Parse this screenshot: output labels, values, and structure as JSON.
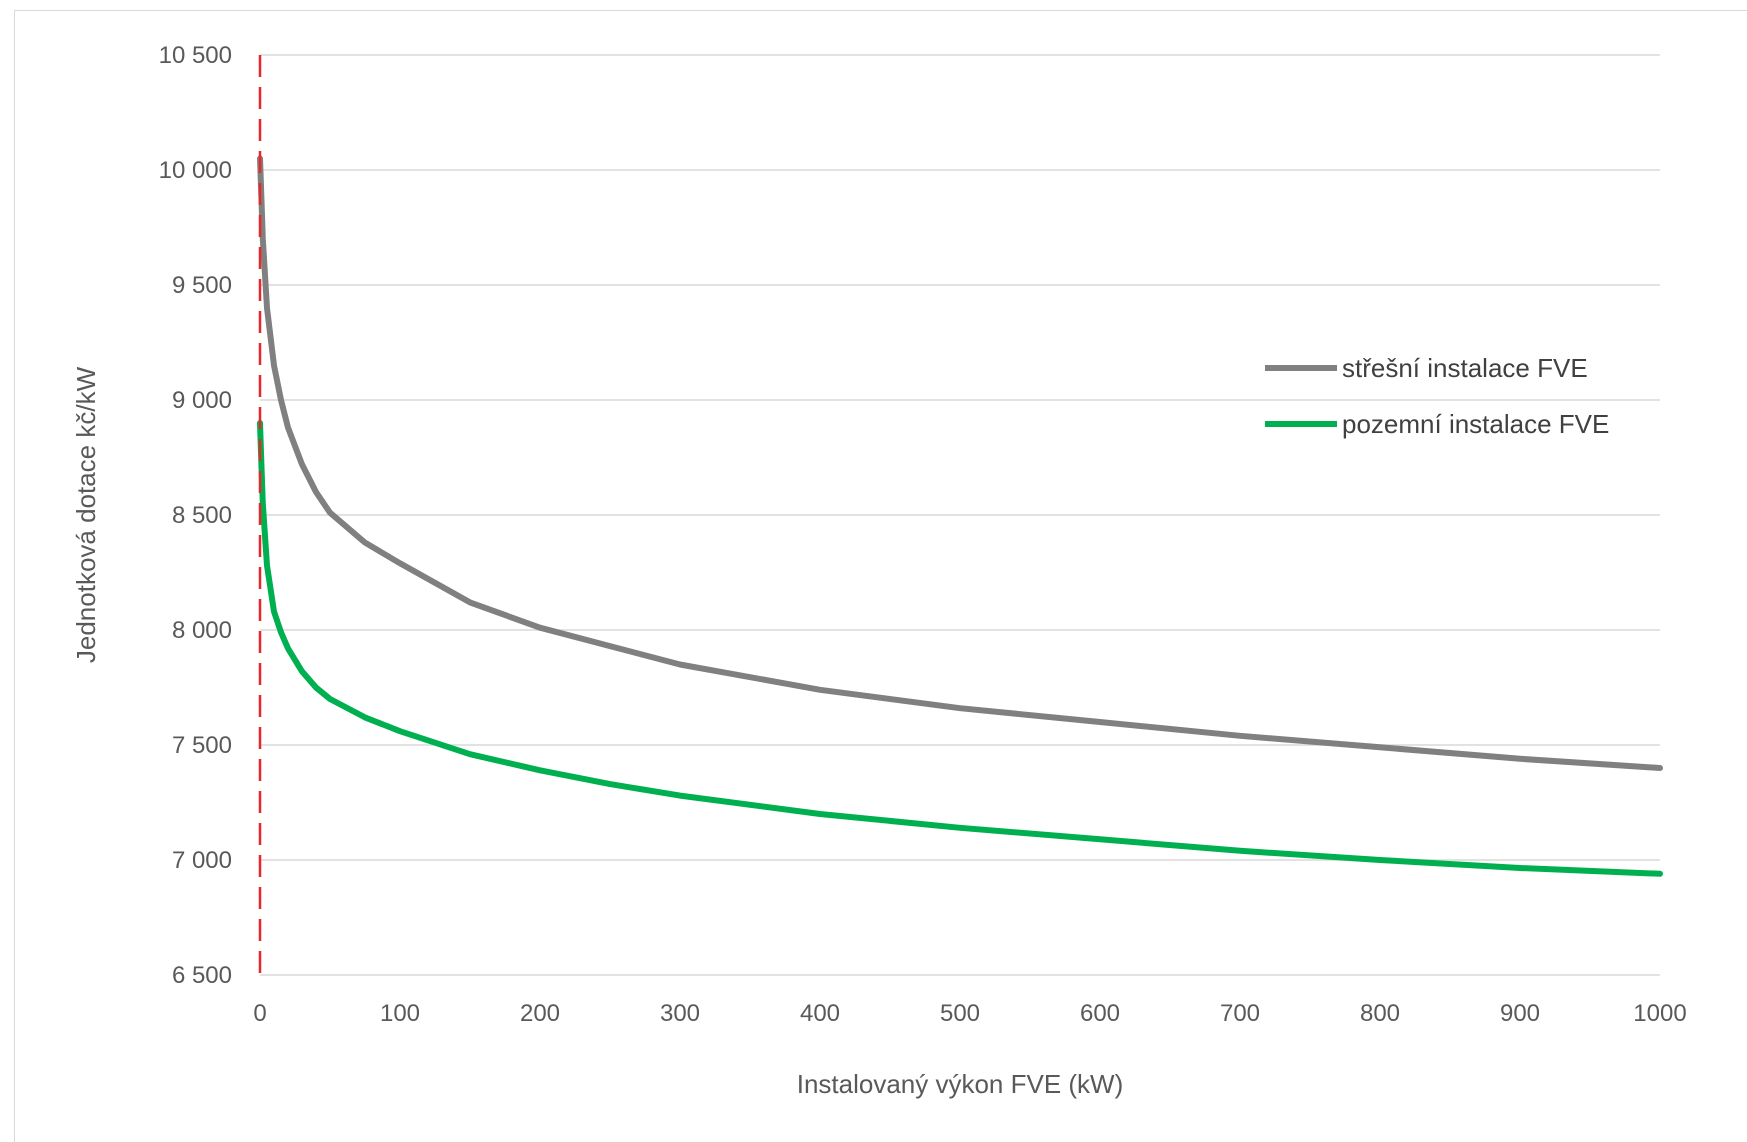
{
  "chart_data": {
    "type": "line",
    "xlabel": "Instalovaný výkon FVE (kW)",
    "ylabel": "Jednotková dotace kč/kW",
    "xlim": [
      0,
      1000
    ],
    "ylim": [
      6500,
      10500
    ],
    "x_ticks": [
      "0",
      "100",
      "200",
      "300",
      "400",
      "500",
      "600",
      "700",
      "800",
      "900",
      "1000"
    ],
    "y_ticks": [
      "6 500",
      "7 000",
      "7 500",
      "8 000",
      "8 500",
      "9 000",
      "9 500",
      "10 000",
      "10 500"
    ],
    "grid": "horizontal",
    "legend_position": "right",
    "reference_line": {
      "x": 0,
      "style": "dashed",
      "color": "#e8272a"
    },
    "series": [
      {
        "name": "střešní instalace FVE",
        "color": "#808080",
        "x": [
          0,
          1,
          2,
          5,
          10,
          15,
          20,
          30,
          40,
          50,
          75,
          100,
          150,
          200,
          250,
          300,
          400,
          500,
          600,
          700,
          800,
          900,
          1000
        ],
        "y": [
          10050,
          9880,
          9700,
          9400,
          9150,
          9000,
          8880,
          8720,
          8600,
          8510,
          8380,
          8290,
          8120,
          8010,
          7930,
          7850,
          7740,
          7660,
          7600,
          7540,
          7490,
          7440,
          7400
        ]
      },
      {
        "name": "pozemní instalace FVE",
        "color": "#00b050",
        "x": [
          0,
          1,
          2,
          5,
          10,
          15,
          20,
          30,
          40,
          50,
          75,
          100,
          150,
          200,
          250,
          300,
          400,
          500,
          600,
          700,
          800,
          900,
          1000
        ],
        "y": [
          8900,
          8720,
          8550,
          8280,
          8080,
          7990,
          7920,
          7820,
          7750,
          7700,
          7620,
          7560,
          7460,
          7390,
          7330,
          7280,
          7200,
          7140,
          7090,
          7040,
          7000,
          6965,
          6940
        ]
      }
    ]
  }
}
